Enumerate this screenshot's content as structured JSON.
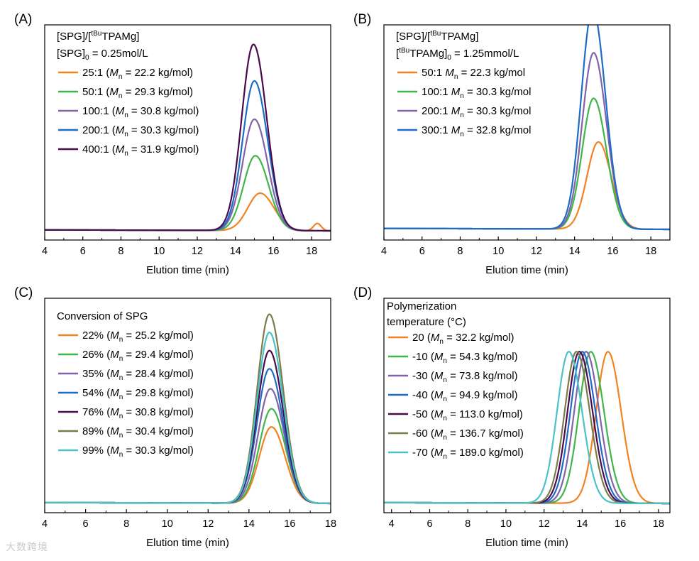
{
  "chart_data": [
    {
      "type": "line",
      "panel_label": "(A)",
      "xlabel": "Elution time (min)",
      "ylabel": "",
      "xlim": [
        4,
        19
      ],
      "xticks": [
        "4",
        "6",
        "8",
        "10",
        "12",
        "14",
        "16",
        "18"
      ],
      "legend_header": [
        {
          "parts": [
            [
              "",
              "[SPG]/["
            ],
            [
              "sup",
              "tBu"
            ],
            [
              "",
              "TPAMg]"
            ]
          ]
        },
        {
          "parts": [
            [
              "",
              "[SPG]"
            ],
            [
              "sub",
              "0"
            ],
            [
              "",
              " = 0.25mol/L"
            ]
          ]
        }
      ],
      "series": [
        {
          "name": "25:1",
          "label": [
            [
              "",
              "25:1 ("
            ],
            [
              "it",
              "M"
            ],
            [
              "sub",
              "n"
            ],
            [
              "",
              " = 22.2 kg/mol)"
            ]
          ],
          "color": "#f28222",
          "peak_x": 15.3,
          "peak_height": 0.205,
          "width": 0.65,
          "extra_peak": {
            "x": 18.3,
            "height": 0.04,
            "width": 0.2
          }
        },
        {
          "name": "50:1",
          "label": [
            [
              "",
              "50:1 ("
            ],
            [
              "it",
              "M"
            ],
            [
              "sub",
              "n"
            ],
            [
              "",
              " = 29.3 kg/mol)"
            ]
          ],
          "color": "#3fb54a",
          "peak_x": 15.05,
          "peak_height": 0.41,
          "width": 0.62
        },
        {
          "name": "100:1",
          "label": [
            [
              "",
              "100:1 ("
            ],
            [
              "it",
              "M"
            ],
            [
              "sub",
              "n"
            ],
            [
              "",
              " = 30.8 kg/mol)"
            ]
          ],
          "color": "#8064a8",
          "peak_x": 15.0,
          "peak_height": 0.61,
          "width": 0.62
        },
        {
          "name": "200:1",
          "label": [
            [
              "",
              "200:1 ("
            ],
            [
              "it",
              "M"
            ],
            [
              "sub",
              "n"
            ],
            [
              "",
              " = 30.3 kg/mol)"
            ]
          ],
          "color": "#1e6cc8",
          "peak_x": 15.0,
          "peak_height": 0.82,
          "width": 0.62
        },
        {
          "name": "400:1",
          "label": [
            [
              "",
              "400:1 ("
            ],
            [
              "it",
              "M"
            ],
            [
              "sub",
              "n"
            ],
            [
              "",
              " = 31.9 kg/mol)"
            ]
          ],
          "color": "#4a0a4e",
          "peak_x": 14.95,
          "peak_height": 1.02,
          "width": 0.62
        }
      ]
    },
    {
      "type": "line",
      "panel_label": "(B)",
      "xlabel": "Elution time (min)",
      "ylabel": "",
      "xlim": [
        4,
        19
      ],
      "xticks": [
        "4",
        "6",
        "8",
        "10",
        "12",
        "14",
        "16",
        "18"
      ],
      "legend_header": [
        {
          "parts": [
            [
              "",
              "[SPG]/["
            ],
            [
              "sup",
              "tBu"
            ],
            [
              "",
              "TPAMg]"
            ]
          ]
        },
        {
          "parts": [
            [
              "",
              "["
            ],
            [
              "sup",
              "tBu"
            ],
            [
              "",
              "TPAMg]"
            ],
            [
              "sub",
              "0"
            ],
            [
              "",
              " = 1.25mmol/L"
            ]
          ]
        }
      ],
      "series": [
        {
          "name": "50:1",
          "label": [
            [
              "",
              "50:1 "
            ],
            [
              "it",
              "M"
            ],
            [
              "sub",
              "n"
            ],
            [
              "",
              " = 22.3 kg/mol"
            ]
          ],
          "color": "#f28222",
          "peak_x": 15.25,
          "peak_height": 0.44,
          "width": 0.6
        },
        {
          "name": "100:1",
          "label": [
            [
              "",
              "100:1 "
            ],
            [
              "it",
              "M"
            ],
            [
              "sub",
              "n"
            ],
            [
              "",
              " = 30.3 kg/mol"
            ]
          ],
          "color": "#3fb54a",
          "peak_x": 15.0,
          "peak_height": 0.66,
          "width": 0.6
        },
        {
          "name": "200:1",
          "label": [
            [
              "",
              "200:1 "
            ],
            [
              "it",
              "M"
            ],
            [
              "sub",
              "n"
            ],
            [
              "",
              " = 30.3 kg/mol"
            ]
          ],
          "color": "#8064a8",
          "peak_x": 15.0,
          "peak_height": 0.89,
          "width": 0.6
        },
        {
          "name": "300:1",
          "label": [
            [
              "",
              "300:1 "
            ],
            [
              "it",
              "M"
            ],
            [
              "sub",
              "n"
            ],
            [
              "",
              " = 32.8 kg/mol"
            ]
          ],
          "color": "#1e6cc8",
          "peak_x": 14.95,
          "peak_height": 1.11,
          "width": 0.6
        }
      ]
    },
    {
      "type": "line",
      "panel_label": "(C)",
      "xlabel": "Elution time (min)",
      "ylabel": "",
      "xlim": [
        4,
        18
      ],
      "xticks": [
        "4",
        "6",
        "8",
        "10",
        "12",
        "14",
        "16",
        "18"
      ],
      "legend_header": [
        {
          "parts": [
            [
              "",
              "Conversion of SPG"
            ]
          ]
        }
      ],
      "series": [
        {
          "name": "22%",
          "label": [
            [
              "",
              "22% ("
            ],
            [
              "it",
              "M"
            ],
            [
              "sub",
              "n"
            ],
            [
              "",
              " = 25.2 kg/mol)"
            ]
          ],
          "color": "#f28222",
          "peak_x": 15.1,
          "peak_height": 0.42,
          "width": 0.6
        },
        {
          "name": "26%",
          "label": [
            [
              "",
              "26% ("
            ],
            [
              "it",
              "M"
            ],
            [
              "sub",
              "n"
            ],
            [
              "",
              " = 29.4 kg/mol)"
            ]
          ],
          "color": "#3fb54a",
          "peak_x": 15.1,
          "peak_height": 0.52,
          "width": 0.6
        },
        {
          "name": "35%",
          "label": [
            [
              "",
              "35% ("
            ],
            [
              "it",
              "M"
            ],
            [
              "sub",
              "n"
            ],
            [
              "",
              " = 28.4 kg/mol)"
            ]
          ],
          "color": "#8064a8",
          "peak_x": 15.05,
          "peak_height": 0.63,
          "width": 0.6
        },
        {
          "name": "54%",
          "label": [
            [
              "",
              "54% ("
            ],
            [
              "it",
              "M"
            ],
            [
              "sub",
              "n"
            ],
            [
              "",
              " = 29.8 kg/mol)"
            ]
          ],
          "color": "#1e6cc8",
          "peak_x": 15.0,
          "peak_height": 0.74,
          "width": 0.6
        },
        {
          "name": "76%",
          "label": [
            [
              "",
              "76% ("
            ],
            [
              "it",
              "M"
            ],
            [
              "sub",
              "n"
            ],
            [
              "",
              " = 30.8 kg/mol)"
            ]
          ],
          "color": "#4a0a4e",
          "peak_x": 15.0,
          "peak_height": 0.84,
          "width": 0.6
        },
        {
          "name": "89%",
          "label": [
            [
              "",
              "89% ("
            ],
            [
              "it",
              "M"
            ],
            [
              "sub",
              "n"
            ],
            [
              "",
              " = 30.4 kg/mol)"
            ]
          ],
          "color": "#7b7b4a",
          "peak_x": 15.0,
          "peak_height": 1.04,
          "width": 0.6
        },
        {
          "name": "99%",
          "label": [
            [
              "",
              "99% ("
            ],
            [
              "it",
              "M"
            ],
            [
              "sub",
              "n"
            ],
            [
              "",
              " = 30.3 kg/mol)"
            ]
          ],
          "color": "#4ac2c8",
          "peak_x": 15.0,
          "peak_height": 0.94,
          "width": 0.6
        }
      ]
    },
    {
      "type": "line",
      "panel_label": "(D)",
      "xlabel": "Elution time (min)",
      "ylabel": "",
      "xlim": [
        3.6,
        18.6
      ],
      "xticks": [
        "4",
        "6",
        "8",
        "10",
        "12",
        "14",
        "16",
        "18"
      ],
      "legend_header": [
        {
          "parts": [
            [
              "",
              "Polymerization"
            ]
          ]
        },
        {
          "parts": [
            [
              "",
              "temperature (°C)"
            ]
          ]
        }
      ],
      "series": [
        {
          "name": "20",
          "label": [
            [
              "",
              "20 ("
            ],
            [
              "it",
              "M"
            ],
            [
              "sub",
              "n"
            ],
            [
              "",
              " = 32.2 kg/mol)"
            ]
          ],
          "color": "#f28222",
          "peak_x": 15.35,
          "peak_height": 0.92,
          "width": 0.62
        },
        {
          "name": "-10",
          "label": [
            [
              "",
              "-10 ("
            ],
            [
              "it",
              "M"
            ],
            [
              "sub",
              "n"
            ],
            [
              "",
              " = 54.3 kg/mol)"
            ]
          ],
          "color": "#3fb54a",
          "peak_x": 14.45,
          "peak_height": 0.92,
          "width": 0.62
        },
        {
          "name": "-30",
          "label": [
            [
              "",
              "-30 ("
            ],
            [
              "it",
              "M"
            ],
            [
              "sub",
              "n"
            ],
            [
              "",
              " = 73.8 kg/mol)"
            ]
          ],
          "color": "#8064a8",
          "peak_x": 14.2,
          "peak_height": 0.92,
          "width": 0.62
        },
        {
          "name": "-40",
          "label": [
            [
              "",
              "-40 ("
            ],
            [
              "it",
              "M"
            ],
            [
              "sub",
              "n"
            ],
            [
              "",
              " = 94.9 kg/mol)"
            ]
          ],
          "color": "#1e6cc8",
          "peak_x": 14.0,
          "peak_height": 0.92,
          "width": 0.62
        },
        {
          "name": "-50",
          "label": [
            [
              "",
              "-50 ("
            ],
            [
              "it",
              "M"
            ],
            [
              "sub",
              "n"
            ],
            [
              "",
              " = 113.0 kg/mol)"
            ]
          ],
          "color": "#4a0a4e",
          "peak_x": 13.85,
          "peak_height": 0.92,
          "width": 0.62
        },
        {
          "name": "-60",
          "label": [
            [
              "",
              "-60 ("
            ],
            [
              "it",
              "M"
            ],
            [
              "sub",
              "n"
            ],
            [
              "",
              " = 136.7 kg/mol)"
            ]
          ],
          "color": "#7b7b4a",
          "peak_x": 13.7,
          "peak_height": 0.92,
          "width": 0.62
        },
        {
          "name": "-70",
          "label": [
            [
              "",
              "-70 ("
            ],
            [
              "it",
              "M"
            ],
            [
              "sub",
              "n"
            ],
            [
              "",
              " = 189.0 kg/mol)"
            ]
          ],
          "color": "#4ac2c8",
          "peak_x": 13.3,
          "peak_height": 0.92,
          "width": 0.62
        }
      ]
    }
  ],
  "watermark": "大数跨境"
}
